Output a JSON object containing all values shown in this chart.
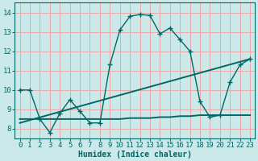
{
  "xlabel": "Humidex (Indice chaleur)",
  "background_color": "#cce9e9",
  "grid_color": "#e8a8a8",
  "line_color": "#006666",
  "ylim": [
    7.5,
    14.5
  ],
  "xlim": [
    -0.5,
    23.5
  ],
  "yticks": [
    8,
    9,
    10,
    11,
    12,
    13,
    14
  ],
  "xticks": [
    0,
    1,
    2,
    3,
    4,
    5,
    6,
    7,
    8,
    9,
    10,
    11,
    12,
    13,
    14,
    15,
    16,
    17,
    18,
    19,
    20,
    21,
    22,
    23
  ],
  "line1_x": [
    0,
    1,
    2,
    3,
    4,
    5,
    6,
    7,
    8,
    9,
    10,
    11,
    12,
    13,
    14,
    15,
    16,
    17,
    18,
    19,
    20,
    21,
    22,
    23
  ],
  "line1_y": [
    10.0,
    10.0,
    8.5,
    7.8,
    8.8,
    9.5,
    8.9,
    8.3,
    8.3,
    11.3,
    13.1,
    13.8,
    13.9,
    13.85,
    12.9,
    13.2,
    12.6,
    12.0,
    9.4,
    8.6,
    8.7,
    10.4,
    11.3,
    11.6
  ],
  "line2_x": [
    0,
    23
  ],
  "line2_y": [
    8.3,
    11.6
  ],
  "line3_x": [
    0,
    1,
    2,
    3,
    4,
    5,
    6,
    7,
    8,
    9,
    10,
    11,
    12,
    13,
    14,
    15,
    16,
    17,
    18,
    19,
    20,
    21,
    22,
    23
  ],
  "line3_y": [
    8.5,
    8.5,
    8.5,
    8.5,
    8.5,
    8.5,
    8.5,
    8.5,
    8.5,
    8.5,
    8.5,
    8.55,
    8.55,
    8.55,
    8.6,
    8.6,
    8.65,
    8.65,
    8.7,
    8.7,
    8.7,
    8.7,
    8.7,
    8.7
  ]
}
